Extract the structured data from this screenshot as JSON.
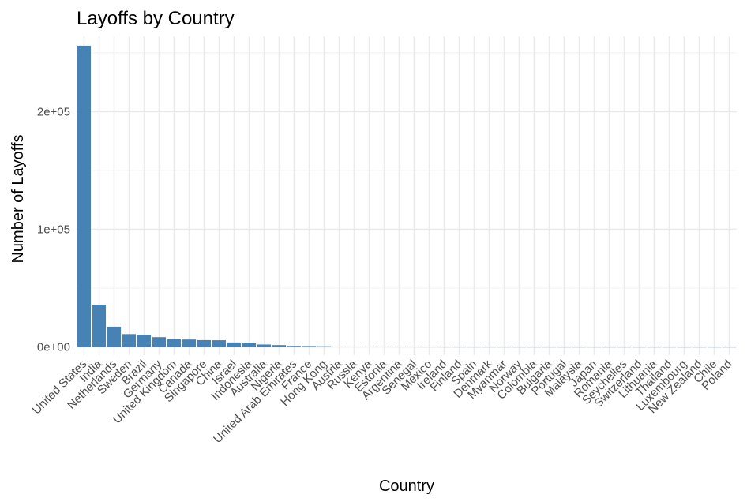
{
  "chart_data": {
    "type": "bar",
    "title": "Layoffs by Country",
    "xlabel": "Country",
    "ylabel": "Number of Layoffs",
    "ylim": [
      -7000,
      264000
    ],
    "yticks": [
      0,
      100000,
      200000
    ],
    "ytick_labels": [
      "0e+00",
      "1e+05",
      "2e+05"
    ],
    "grid": true,
    "bar_color": "#4682b4",
    "categories": [
      "United States",
      "India",
      "Netherlands",
      "Sweden",
      "Brazil",
      "Germany",
      "United Kingdom",
      "Canada",
      "Singapore",
      "China",
      "Israel",
      "Indonesia",
      "Australia",
      "Nigeria",
      "United Arab Emirates",
      "France",
      "Hong Kong",
      "Austria",
      "Russia",
      "Kenya",
      "Estonia",
      "Argentina",
      "Senegal",
      "Mexico",
      "Ireland",
      "Finland",
      "Spain",
      "Denmark",
      "Myanmar",
      "Norway",
      "Colombia",
      "Bulgaria",
      "Portugal",
      "Malaysia",
      "Japan",
      "Romania",
      "Seychelles",
      "Switzerland",
      "Lithuania",
      "Thailand",
      "Luxembourg",
      "New Zealand",
      "Chile",
      "Poland"
    ],
    "values": [
      256000,
      35900,
      17200,
      10900,
      10400,
      8300,
      6500,
      6300,
      5800,
      5700,
      3800,
      3600,
      2100,
      1600,
      900,
      800,
      600,
      300,
      200,
      150,
      120,
      100,
      90,
      80,
      70,
      60,
      50,
      45,
      40,
      35,
      30,
      28,
      25,
      22,
      20,
      18,
      15,
      12,
      10,
      8,
      6,
      5,
      4,
      3
    ]
  }
}
